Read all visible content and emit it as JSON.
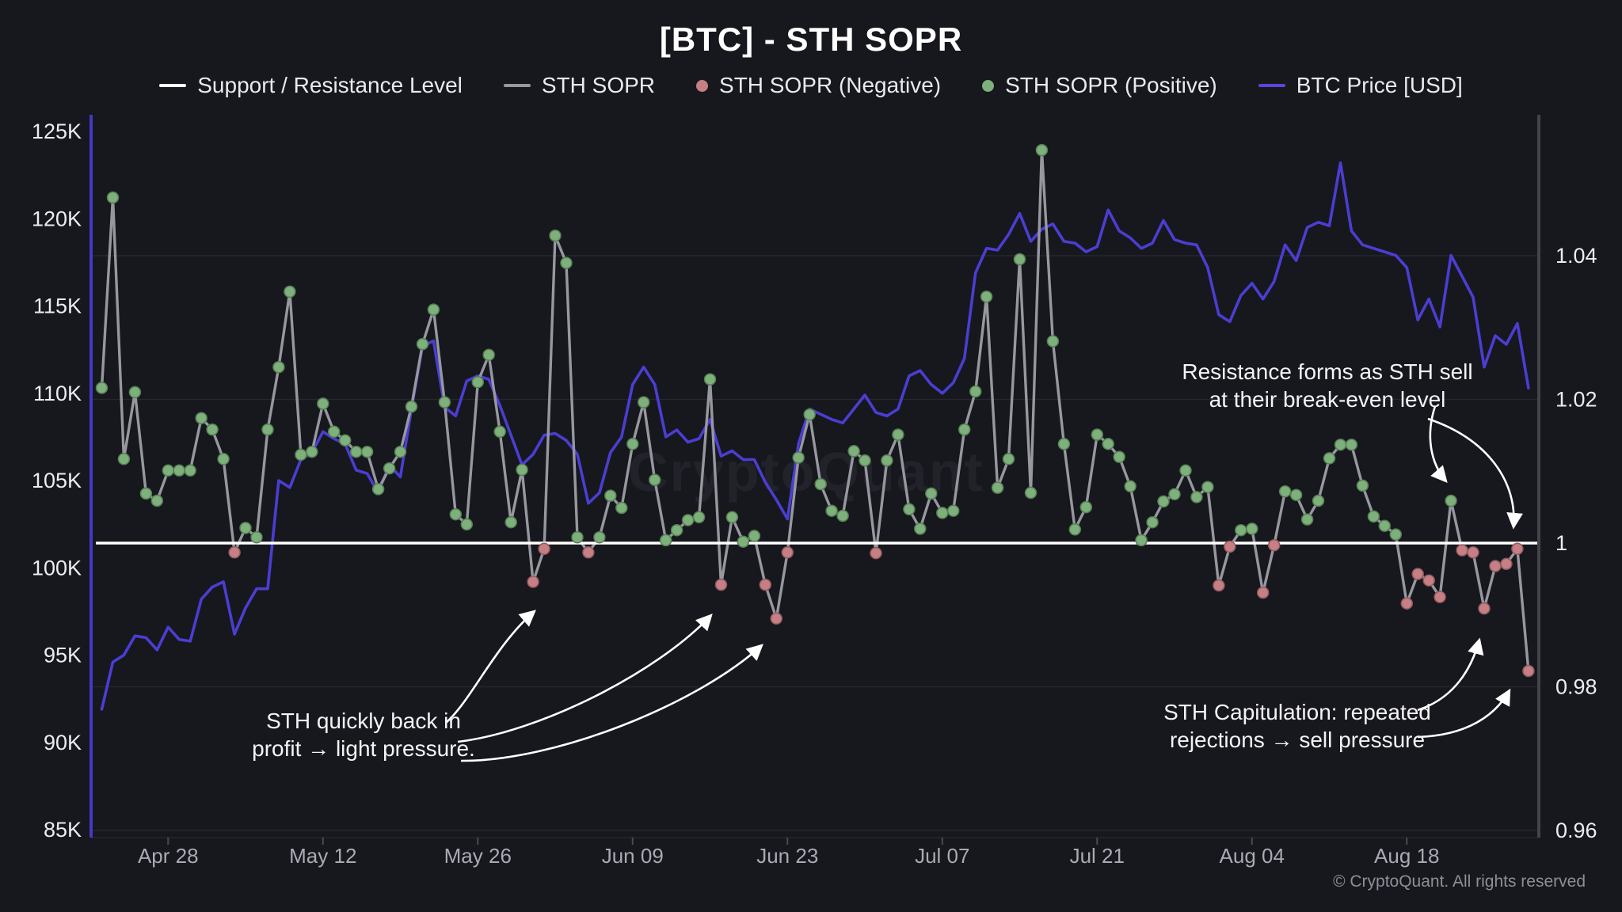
{
  "header": {
    "title": "[BTC] - STH SOPR"
  },
  "legend": {
    "items": [
      {
        "label": "Support / Resistance Level",
        "marker": "white-dash"
      },
      {
        "label": "STH SOPR",
        "marker": "gray-dash"
      },
      {
        "label": "STH SOPR (Negative)",
        "marker": "red-dot"
      },
      {
        "label": "STH SOPR (Positive)",
        "marker": "green-dot"
      },
      {
        "label": "BTC Price [USD]",
        "marker": "blue-dash"
      }
    ]
  },
  "watermark": "CryptoQuant",
  "footer": {
    "copyright": "© CryptoQuant. All rights reserved"
  },
  "annotations": {
    "resistance": {
      "line1": "Resistance forms as STH sell",
      "line2": "at their break-even level"
    },
    "back_in_profit": {
      "line1": "STH quickly back in",
      "line2": "profit → light pressure."
    },
    "capitulation": {
      "line1": "STH Capitulation: repeated",
      "line2": "rejections → sell pressure"
    }
  },
  "colors": {
    "background": "#17171e",
    "support_resistance": "#ffffff",
    "sth_sopr_line": "#97979f",
    "sopr_negative": "#c67f84",
    "sopr_positive": "#7db07a",
    "btc_price": "#4a3ed2",
    "left_axis_line": "#4439c4",
    "right_axis_line": "#43434c",
    "grid": "#26262e"
  },
  "chart_data": {
    "type": "line",
    "title": "[BTC] - STH SOPR",
    "x_ticks": [
      {
        "label": "Apr 28",
        "day": 6
      },
      {
        "label": "May 12",
        "day": 20
      },
      {
        "label": "May 26",
        "day": 34
      },
      {
        "label": "Jun 09",
        "day": 48
      },
      {
        "label": "Jun 23",
        "day": 62
      },
      {
        "label": "Jul 07",
        "day": 76
      },
      {
        "label": "Jul 21",
        "day": 90
      },
      {
        "label": "Aug 04",
        "day": 104
      },
      {
        "label": "Aug 18",
        "day": 118
      }
    ],
    "left_axis": {
      "metric": "BTC Price [USD]",
      "tick_labels": [
        "125K",
        "120K",
        "115K",
        "110K",
        "105K",
        "100K",
        "95K",
        "90K",
        "85K"
      ],
      "tick_values": [
        125,
        120,
        115,
        110,
        105,
        100,
        95,
        90,
        85
      ]
    },
    "right_axis": {
      "metric": "STH SOPR",
      "tick_labels": [
        "1.04",
        "1.02",
        "1",
        "0.98",
        "0.96"
      ],
      "tick_values": [
        1.04,
        1.02,
        1,
        0.98,
        0.96
      ]
    },
    "support_resistance_level": 1,
    "point_rule": {
      "positive": "SOPR >= 1",
      "negative": "SOPR < 1"
    },
    "series": [
      {
        "name": "STH SOPR",
        "axis": "right",
        "values": [
          1.0216,
          1.0481,
          1.0117,
          1.021,
          1.0069,
          1.0059,
          1.0101,
          1.0101,
          1.0101,
          1.0174,
          1.0158,
          1.0117,
          0.9987,
          1.0021,
          1.0008,
          1.0158,
          1.0245,
          1.035,
          1.0123,
          1.0127,
          1.0194,
          1.0155,
          1.0143,
          1.0127,
          1.0127,
          1.0075,
          1.0104,
          1.0127,
          1.019,
          1.0277,
          1.0325,
          1.0196,
          1.004,
          1.0026,
          1.0224,
          1.0262,
          1.0155,
          1.0029,
          1.0102,
          0.9946,
          0.9992,
          1.0428,
          1.039,
          1.0008,
          0.9987,
          1.0008,
          1.0066,
          1.0049,
          1.0138,
          1.0196,
          1.0088,
          1.0004,
          1.0018,
          1.0032,
          1.0036,
          1.0228,
          0.9942,
          1.0036,
          1.0002,
          1.001,
          0.9942,
          0.9895,
          0.9987,
          1.0119,
          1.0179,
          1.0082,
          1.0045,
          1.0038,
          1.0128,
          1.0115,
          0.9986,
          1.0115,
          1.0151,
          1.0047,
          1.002,
          1.0069,
          1.0042,
          1.0045,
          1.0158,
          1.0211,
          1.0343,
          1.0077,
          1.0117,
          1.0395,
          1.007,
          1.0547,
          1.0281,
          1.0138,
          1.0019,
          1.005,
          1.0151,
          1.0138,
          1.012,
          1.0079,
          1.0004,
          1.0029,
          1.0058,
          1.0068,
          1.0101,
          1.0064,
          1.0078,
          0.9941,
          0.9995,
          1.0018,
          1.002,
          0.9931,
          0.9997,
          1.0072,
          1.0067,
          1.0033,
          1.0059,
          1.0118,
          1.0137,
          1.0137,
          1.008,
          1.0037,
          1.0024,
          1.0012,
          0.9916,
          0.9957,
          0.9948,
          0.9925,
          1.0059,
          0.999,
          0.9987,
          0.9909,
          0.9968,
          0.9971,
          0.9992,
          0.9822
        ]
      },
      {
        "name": "BTC Price [USD]",
        "axis": "left",
        "unit": "K USD",
        "values": [
          91.9,
          94.6,
          95.0,
          96.1,
          96.0,
          95.3,
          96.6,
          95.9,
          95.8,
          98.2,
          98.9,
          99.2,
          96.2,
          97.7,
          98.8,
          98.8,
          105.0,
          104.6,
          106.2,
          106.6,
          107.8,
          107.4,
          107.1,
          105.6,
          105.4,
          104.3,
          105.9,
          105.2,
          109.1,
          112.7,
          113.0,
          109.2,
          108.7,
          110.7,
          111.0,
          110.8,
          109.3,
          107.6,
          105.9,
          106.5,
          107.6,
          107.7,
          107.3,
          106.5,
          103.7,
          104.3,
          106.6,
          107.5,
          110.5,
          111.5,
          110.5,
          107.5,
          107.9,
          107.2,
          107.4,
          108.5,
          106.4,
          106.7,
          106.2,
          106.2,
          104.9,
          103.9,
          102.8,
          107.1,
          109.1,
          108.8,
          108.5,
          108.3,
          109.1,
          109.9,
          108.9,
          108.7,
          109.1,
          111.0,
          111.3,
          110.5,
          110.0,
          110.6,
          112.0,
          116.9,
          118.3,
          118.2,
          119.1,
          120.3,
          118.7,
          119.4,
          119.7,
          118.7,
          118.6,
          118.1,
          118.4,
          120.5,
          119.3,
          118.9,
          118.3,
          118.6,
          119.9,
          118.8,
          118.6,
          118.5,
          117.2,
          114.5,
          114.1,
          115.6,
          116.3,
          115.4,
          116.4,
          118.5,
          117.6,
          119.5,
          119.8,
          119.6,
          123.2,
          119.3,
          118.5,
          118.3,
          118.1,
          117.9,
          117.2,
          114.2,
          115.4,
          113.8,
          117.9,
          116.7,
          115.5,
          111.5,
          113.3,
          112.8,
          114.0,
          110.3
        ]
      }
    ]
  }
}
